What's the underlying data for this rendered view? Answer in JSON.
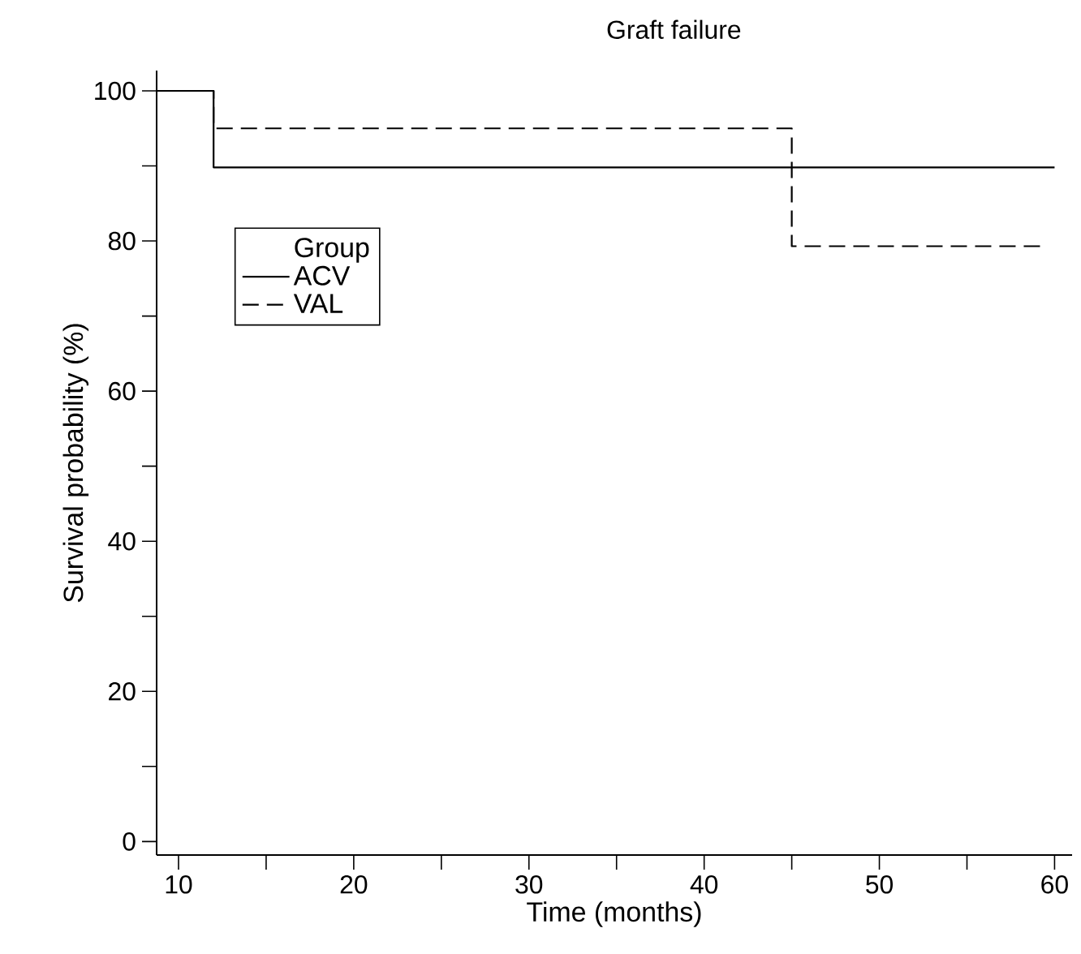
{
  "chart_data": {
    "type": "step",
    "title": "Graft failure",
    "xlabel": "Time (months)",
    "ylabel": "Survival probability (%)",
    "legend_title": "Group",
    "series": [
      {
        "name": "ACV",
        "color": "#000000",
        "line_style": "solid",
        "x": [
          8.75,
          12,
          60
        ],
        "values": [
          100,
          89.8,
          89.8
        ]
      },
      {
        "name": "VAL",
        "color": "#000000",
        "line_style": "dashed",
        "x": [
          8.75,
          12,
          45,
          59.2
        ],
        "values": [
          100,
          95,
          79.3,
          79.3
        ]
      }
    ],
    "xlim": [
      8.75,
      61
    ],
    "ylim": [
      -1.8,
      102.7
    ],
    "xticks": [
      10,
      {
        "value": 15,
        "label": null
      },
      20,
      {
        "value": 25,
        "label": null
      },
      30,
      {
        "value": 35,
        "label": null
      },
      40,
      {
        "value": 45,
        "label": null
      },
      50,
      {
        "value": 55,
        "label": null
      },
      60
    ],
    "yticks": [
      0,
      {
        "value": 10,
        "label": null
      },
      20,
      {
        "value": 30,
        "label": null
      },
      40,
      {
        "value": 50,
        "label": null
      },
      60,
      {
        "value": 70,
        "label": null
      },
      80,
      {
        "value": 90,
        "label": null
      },
      100
    ],
    "legend": "top left",
    "grid": false,
    "marker": "none"
  }
}
